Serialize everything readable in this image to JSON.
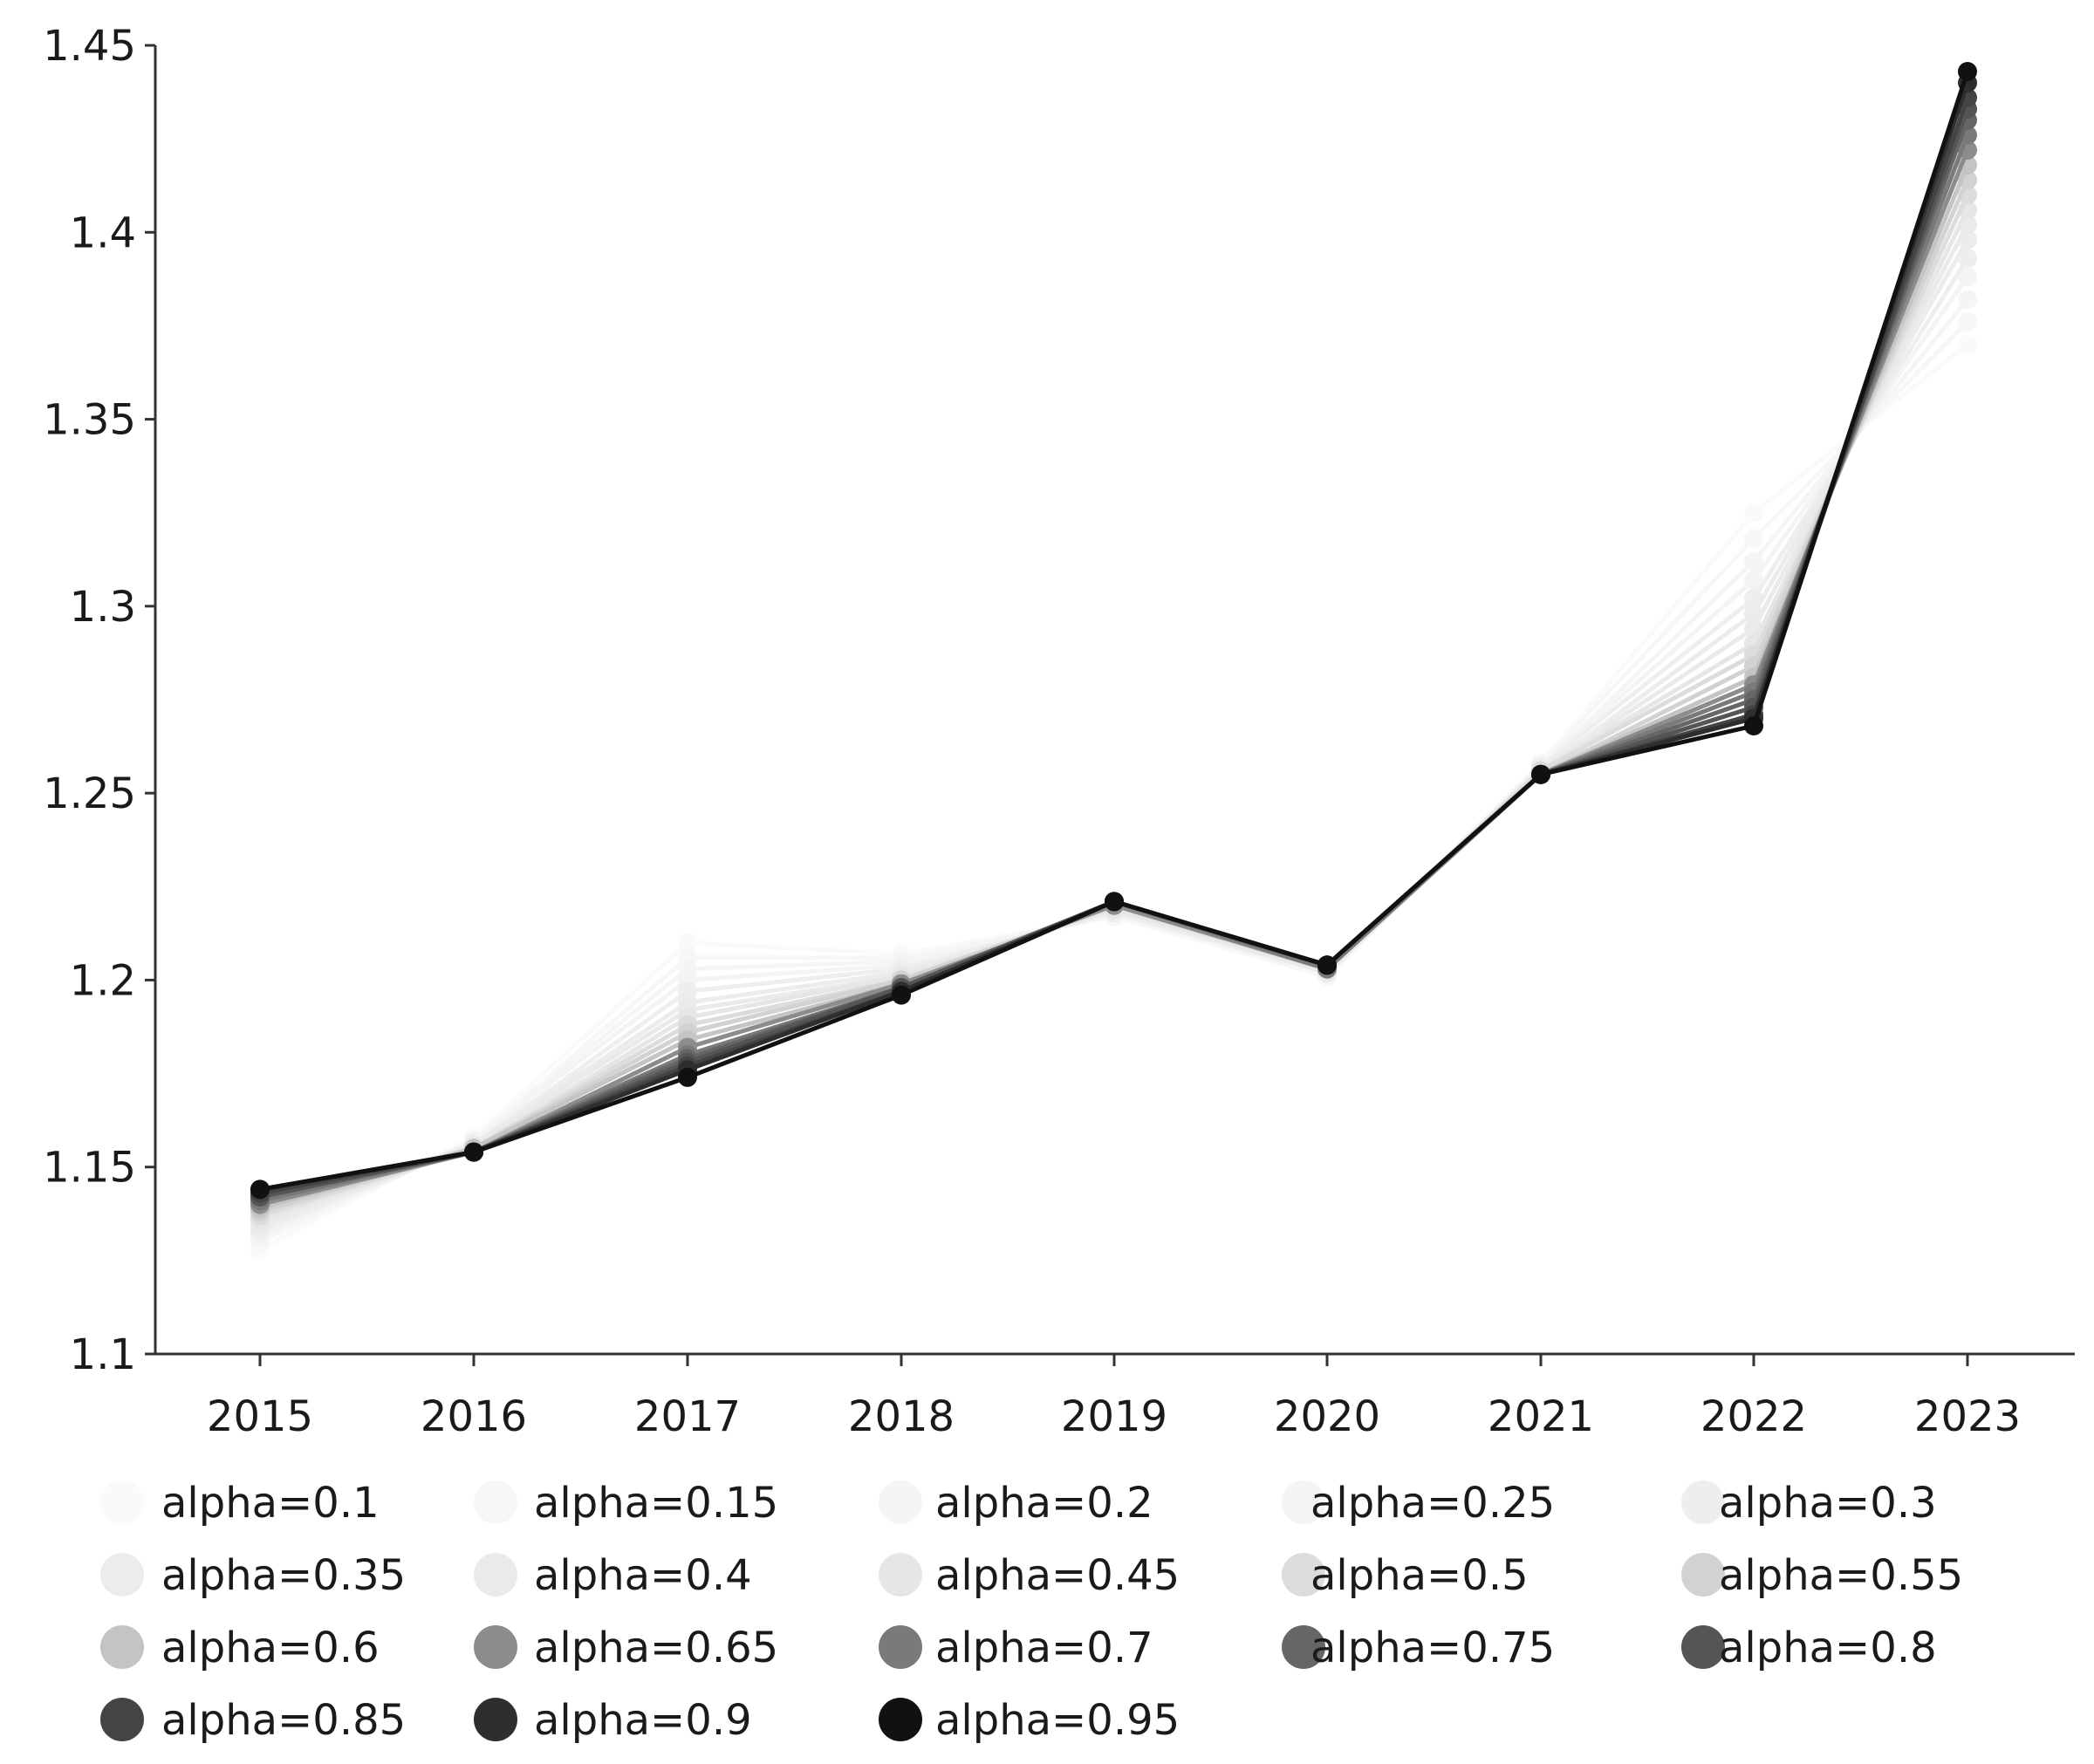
{
  "chart_data": {
    "type": "line",
    "title": "",
    "xlabel": "",
    "ylabel": "",
    "x": [
      "2015",
      "2016",
      "2017",
      "2018",
      "2019",
      "2020",
      "2021",
      "2022",
      "2023"
    ],
    "ylim": [
      1.1,
      1.45
    ],
    "yticks": [
      "1.1",
      "1.15",
      "1.2",
      "1.25",
      "1.3",
      "1.35",
      "1.4",
      "1.45"
    ],
    "ytick_values": [
      1.1,
      1.15,
      1.2,
      1.25,
      1.3,
      1.35,
      1.4,
      1.45
    ],
    "grid": false,
    "legend_position": "bottom",
    "series": [
      {
        "name": "alpha=0.1",
        "color": "#fafafa",
        "values": [
          1.128,
          1.158,
          1.21,
          1.207,
          1.217,
          1.201,
          1.258,
          1.325,
          1.37
        ]
      },
      {
        "name": "alpha=0.15",
        "color": "#f7f7f7",
        "values": [
          1.13,
          1.157,
          1.206,
          1.206,
          1.217,
          1.201,
          1.258,
          1.318,
          1.376
        ]
      },
      {
        "name": "alpha=0.2",
        "color": "#f5f5f5",
        "values": [
          1.131,
          1.157,
          1.203,
          1.205,
          1.218,
          1.202,
          1.257,
          1.312,
          1.382
        ]
      },
      {
        "name": "alpha=0.25",
        "color": "#f4f4f4",
        "values": [
          1.132,
          1.157,
          1.2,
          1.204,
          1.218,
          1.202,
          1.257,
          1.307,
          1.388
        ]
      },
      {
        "name": "alpha=0.3",
        "color": "#eeeeee",
        "values": [
          1.133,
          1.156,
          1.197,
          1.203,
          1.218,
          1.202,
          1.257,
          1.302,
          1.393
        ]
      },
      {
        "name": "alpha=0.35",
        "color": "#ececec",
        "values": [
          1.134,
          1.156,
          1.194,
          1.202,
          1.219,
          1.202,
          1.256,
          1.298,
          1.398
        ]
      },
      {
        "name": "alpha=0.4",
        "color": "#eaeaea",
        "values": [
          1.135,
          1.156,
          1.192,
          1.201,
          1.219,
          1.202,
          1.256,
          1.294,
          1.402
        ]
      },
      {
        "name": "alpha=0.45",
        "color": "#e6e6e6",
        "values": [
          1.136,
          1.155,
          1.19,
          1.201,
          1.219,
          1.203,
          1.256,
          1.29,
          1.406
        ]
      },
      {
        "name": "alpha=0.5",
        "color": "#dcdcdc",
        "values": [
          1.137,
          1.155,
          1.188,
          1.2,
          1.22,
          1.203,
          1.256,
          1.287,
          1.41
        ]
      },
      {
        "name": "alpha=0.55",
        "color": "#d2d2d2",
        "values": [
          1.138,
          1.155,
          1.186,
          1.2,
          1.22,
          1.203,
          1.255,
          1.284,
          1.414
        ]
      },
      {
        "name": "alpha=0.6",
        "color": "#c4c4c4",
        "values": [
          1.139,
          1.155,
          1.184,
          1.199,
          1.22,
          1.203,
          1.255,
          1.281,
          1.418
        ]
      },
      {
        "name": "alpha=0.65",
        "color": "#8c8c8c",
        "values": [
          1.14,
          1.154,
          1.182,
          1.199,
          1.22,
          1.203,
          1.255,
          1.279,
          1.422
        ]
      },
      {
        "name": "alpha=0.7",
        "color": "#7a7a7a",
        "values": [
          1.141,
          1.154,
          1.18,
          1.198,
          1.221,
          1.203,
          1.255,
          1.277,
          1.426
        ]
      },
      {
        "name": "alpha=0.75",
        "color": "#666666",
        "values": [
          1.142,
          1.154,
          1.179,
          1.198,
          1.221,
          1.204,
          1.255,
          1.275,
          1.43
        ]
      },
      {
        "name": "alpha=0.8",
        "color": "#555555",
        "values": [
          1.142,
          1.154,
          1.178,
          1.198,
          1.221,
          1.204,
          1.255,
          1.273,
          1.433
        ]
      },
      {
        "name": "alpha=0.85",
        "color": "#444444",
        "values": [
          1.143,
          1.154,
          1.177,
          1.197,
          1.221,
          1.204,
          1.255,
          1.271,
          1.436
        ]
      },
      {
        "name": "alpha=0.9",
        "color": "#2e2e2e",
        "values": [
          1.144,
          1.154,
          1.176,
          1.197,
          1.221,
          1.204,
          1.255,
          1.27,
          1.44
        ]
      },
      {
        "name": "alpha=0.95",
        "color": "#111111",
        "values": [
          1.144,
          1.154,
          1.174,
          1.196,
          1.221,
          1.204,
          1.255,
          1.268,
          1.443
        ]
      }
    ]
  }
}
